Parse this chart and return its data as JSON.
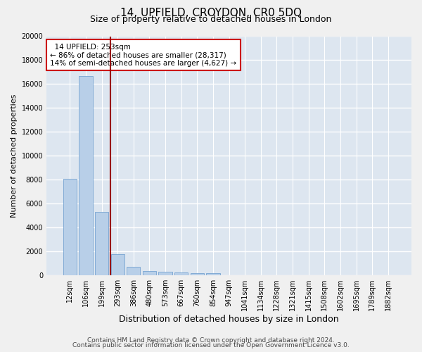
{
  "title1": "14, UPFIELD, CROYDON, CR0 5DQ",
  "title2": "Size of property relative to detached houses in London",
  "xlabel": "Distribution of detached houses by size in London",
  "ylabel": "Number of detached properties",
  "categories": [
    "12sqm",
    "106sqm",
    "199sqm",
    "293sqm",
    "386sqm",
    "480sqm",
    "573sqm",
    "667sqm",
    "760sqm",
    "854sqm",
    "947sqm",
    "1041sqm",
    "1134sqm",
    "1228sqm",
    "1321sqm",
    "1415sqm",
    "1508sqm",
    "1602sqm",
    "1695sqm",
    "1789sqm",
    "1882sqm"
  ],
  "values": [
    8100,
    16700,
    5300,
    1750,
    700,
    375,
    290,
    220,
    210,
    170,
    0,
    0,
    0,
    0,
    0,
    0,
    0,
    0,
    0,
    0,
    0
  ],
  "bar_color": "#b8cfe8",
  "bar_edge_color": "#6699cc",
  "vline_x": 2.55,
  "vline_color": "#990000",
  "annotation_text": "  14 UPFIELD: 253sqm  \n← 86% of detached houses are smaller (28,317)\n14% of semi-detached houses are larger (4,627) →",
  "annotation_box_facecolor": "#ffffff",
  "annotation_box_edgecolor": "#cc0000",
  "ylim": [
    0,
    20000
  ],
  "yticks": [
    0,
    2000,
    4000,
    6000,
    8000,
    10000,
    12000,
    14000,
    16000,
    18000,
    20000
  ],
  "bg_color": "#dde6f0",
  "grid_color": "#ffffff",
  "fig_bg": "#f0f0f0",
  "footer1": "Contains HM Land Registry data © Crown copyright and database right 2024.",
  "footer2": "Contains public sector information licensed under the Open Government Licence v3.0.",
  "title1_fontsize": 11,
  "title2_fontsize": 9,
  "xlabel_fontsize": 9,
  "ylabel_fontsize": 8,
  "tick_fontsize": 7,
  "annot_fontsize": 7.5,
  "footer_fontsize": 6.5
}
